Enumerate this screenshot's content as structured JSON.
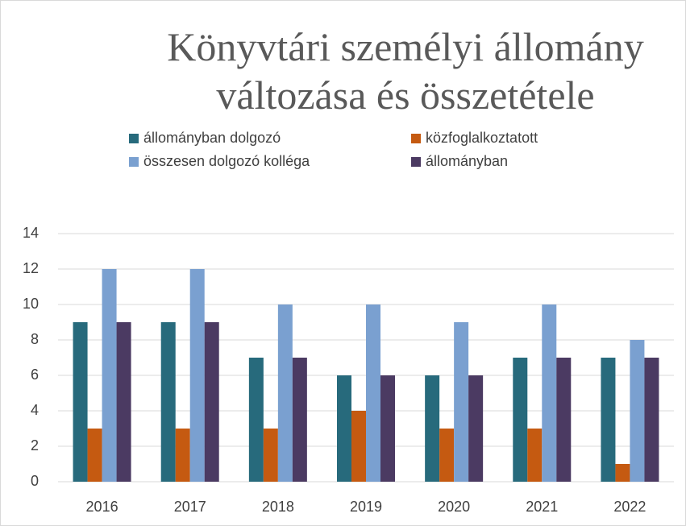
{
  "chart_data": {
    "type": "bar",
    "title": "Könyvtári személyi állomány változása és összetétele",
    "categories": [
      "2016",
      "2017",
      "2018",
      "2019",
      "2020",
      "2021",
      "2022"
    ],
    "series": [
      {
        "name": "állományban dolgozó",
        "color": "#276a7c",
        "values": [
          9,
          9,
          7,
          6,
          6,
          7,
          7
        ]
      },
      {
        "name": "közfoglalkoztatott",
        "color": "#c55a11",
        "values": [
          3,
          3,
          3,
          4,
          3,
          3,
          1
        ]
      },
      {
        "name": "összesen dolgozó kolléga",
        "color": "#7aa0d0",
        "values": [
          12,
          12,
          10,
          10,
          9,
          10,
          8
        ]
      },
      {
        "name": "állományban",
        "color": "#4b3a62",
        "values": [
          9,
          9,
          7,
          6,
          6,
          7,
          7
        ]
      }
    ],
    "ylim": [
      0,
      14
    ],
    "yticks": [
      0,
      2,
      4,
      6,
      8,
      10,
      12,
      14
    ],
    "grid": true
  }
}
